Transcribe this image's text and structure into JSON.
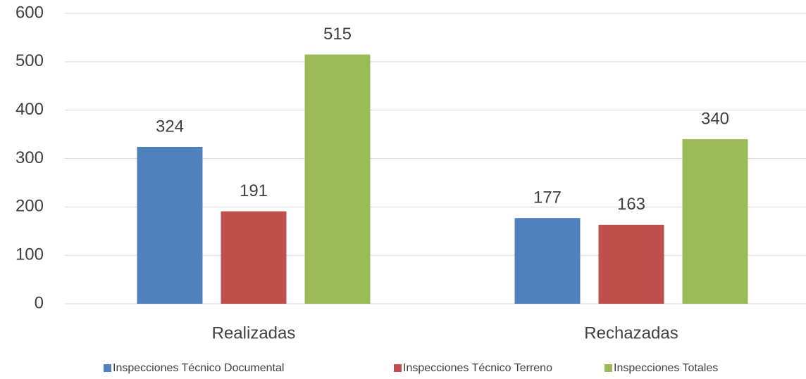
{
  "chart_data": {
    "type": "bar",
    "categories": [
      "Realizadas",
      "Rechazadas"
    ],
    "series": [
      {
        "name": "Inspecciones Técnico Documental",
        "color": "#4f81bd",
        "values": [
          324,
          177
        ]
      },
      {
        "name": "Inspecciones Técnico Terreno",
        "color": "#c0504d",
        "values": [
          191,
          163
        ]
      },
      {
        "name": "Inspecciones Totales",
        "color": "#9bbb59",
        "values": [
          515,
          340
        ]
      }
    ],
    "ylim": [
      0,
      600
    ],
    "yticks": [
      0,
      100,
      200,
      300,
      400,
      500,
      600
    ],
    "grid": true,
    "legend": "bottom"
  }
}
